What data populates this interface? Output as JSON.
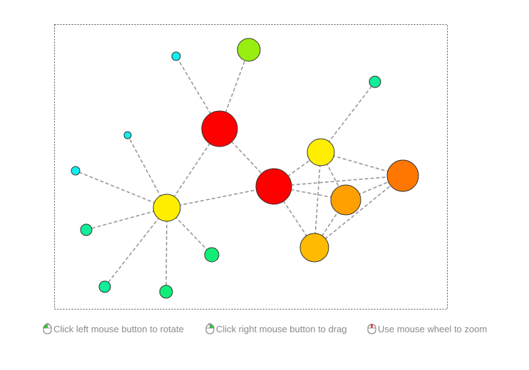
{
  "graph": {
    "nodes": [
      {
        "id": "n1",
        "color": "#ff0000"
      },
      {
        "id": "n2",
        "color": "#ff0000"
      },
      {
        "id": "n3",
        "color": "#ffee00"
      },
      {
        "id": "n4",
        "color": "#ffee00"
      },
      {
        "id": "n5",
        "color": "#ff7700"
      },
      {
        "id": "n6",
        "color": "#ffa000"
      },
      {
        "id": "n7",
        "color": "#ffbb00"
      },
      {
        "id": "n8",
        "color": "#99ee11"
      },
      {
        "id": "n9",
        "color": "#11eeee"
      },
      {
        "id": "n10",
        "color": "#11eeee"
      },
      {
        "id": "n11",
        "color": "#11eeee"
      },
      {
        "id": "n12",
        "color": "#11ee99"
      },
      {
        "id": "n13",
        "color": "#11ee99"
      },
      {
        "id": "n14",
        "color": "#11ee77"
      },
      {
        "id": "n15",
        "color": "#11ee77"
      },
      {
        "id": "n16",
        "color": "#11ee99"
      }
    ],
    "edges": [
      [
        "n1",
        "n8"
      ],
      [
        "n1",
        "n9"
      ],
      [
        "n1",
        "n4"
      ],
      [
        "n1",
        "n2"
      ],
      [
        "n4",
        "n10"
      ],
      [
        "n4",
        "n11"
      ],
      [
        "n4",
        "n12"
      ],
      [
        "n4",
        "n13"
      ],
      [
        "n4",
        "n14"
      ],
      [
        "n4",
        "n15"
      ],
      [
        "n4",
        "n2"
      ],
      [
        "n2",
        "n3"
      ],
      [
        "n2",
        "n5"
      ],
      [
        "n2",
        "n6"
      ],
      [
        "n2",
        "n7"
      ],
      [
        "n3",
        "n16"
      ],
      [
        "n3",
        "n5"
      ],
      [
        "n3",
        "n6"
      ],
      [
        "n3",
        "n7"
      ],
      [
        "n5",
        "n6"
      ],
      [
        "n5",
        "n7"
      ],
      [
        "n6",
        "n7"
      ]
    ],
    "edge_color": "#999999",
    "frame_color": "#555555"
  },
  "hints": {
    "rotate": "Click left mouse button to rotate",
    "drag": "Click right mouse button to drag",
    "zoom": "Use mouse wheel to zoom"
  },
  "icons": {
    "rotate": "mouse-left-button-icon",
    "drag": "mouse-right-button-icon",
    "zoom": "mouse-wheel-icon"
  },
  "accent_colors": {
    "left_button": "#33cc33",
    "right_button": "#33cc33",
    "wheel": "#dd2222"
  }
}
